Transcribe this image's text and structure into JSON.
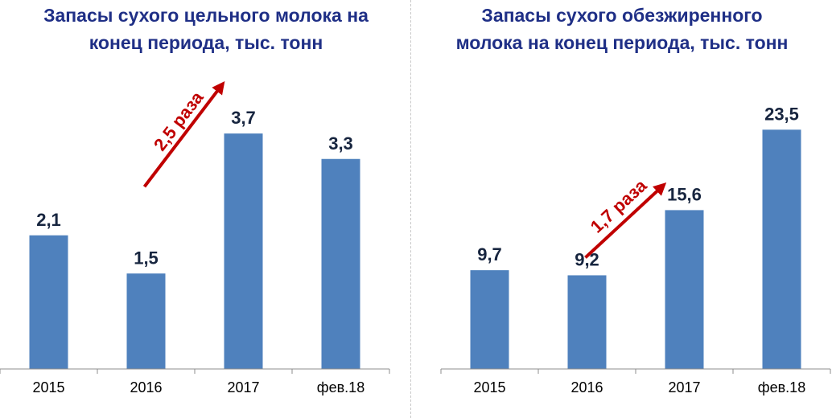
{
  "chart_data": [
    {
      "type": "bar",
      "title_lines": [
        "Запасы сухого цельного молока на",
        "конец периода, тыс. тонн"
      ],
      "categories": [
        "2015",
        "2016",
        "2017",
        "фев.18"
      ],
      "values": [
        2.1,
        1.5,
        3.7,
        3.3
      ],
      "value_labels": [
        "2,1",
        "1,5",
        "3,7",
        "3,3"
      ],
      "ylim": [
        0,
        4.8
      ],
      "grid": false,
      "annotation": {
        "text": "2,5 раза",
        "from_category": "2016",
        "to_category": "2017",
        "color": "#c00000"
      },
      "bar_color": "#4f81bd"
    },
    {
      "type": "bar",
      "title_lines": [
        "Запасы сухого обезжиренного",
        "молока на конец периода, тыс. тонн"
      ],
      "categories": [
        "2015",
        "2016",
        "2017",
        "фев.18"
      ],
      "values": [
        9.7,
        9.2,
        15.6,
        23.5
      ],
      "value_labels": [
        "9,7",
        "9,2",
        "15,6",
        "23,5"
      ],
      "ylim": [
        0,
        30
      ],
      "grid": false,
      "annotation": {
        "text": "1,7 раза",
        "from_category": "2016",
        "to_category": "2017",
        "color": "#c00000"
      },
      "bar_color": "#4f81bd"
    }
  ]
}
